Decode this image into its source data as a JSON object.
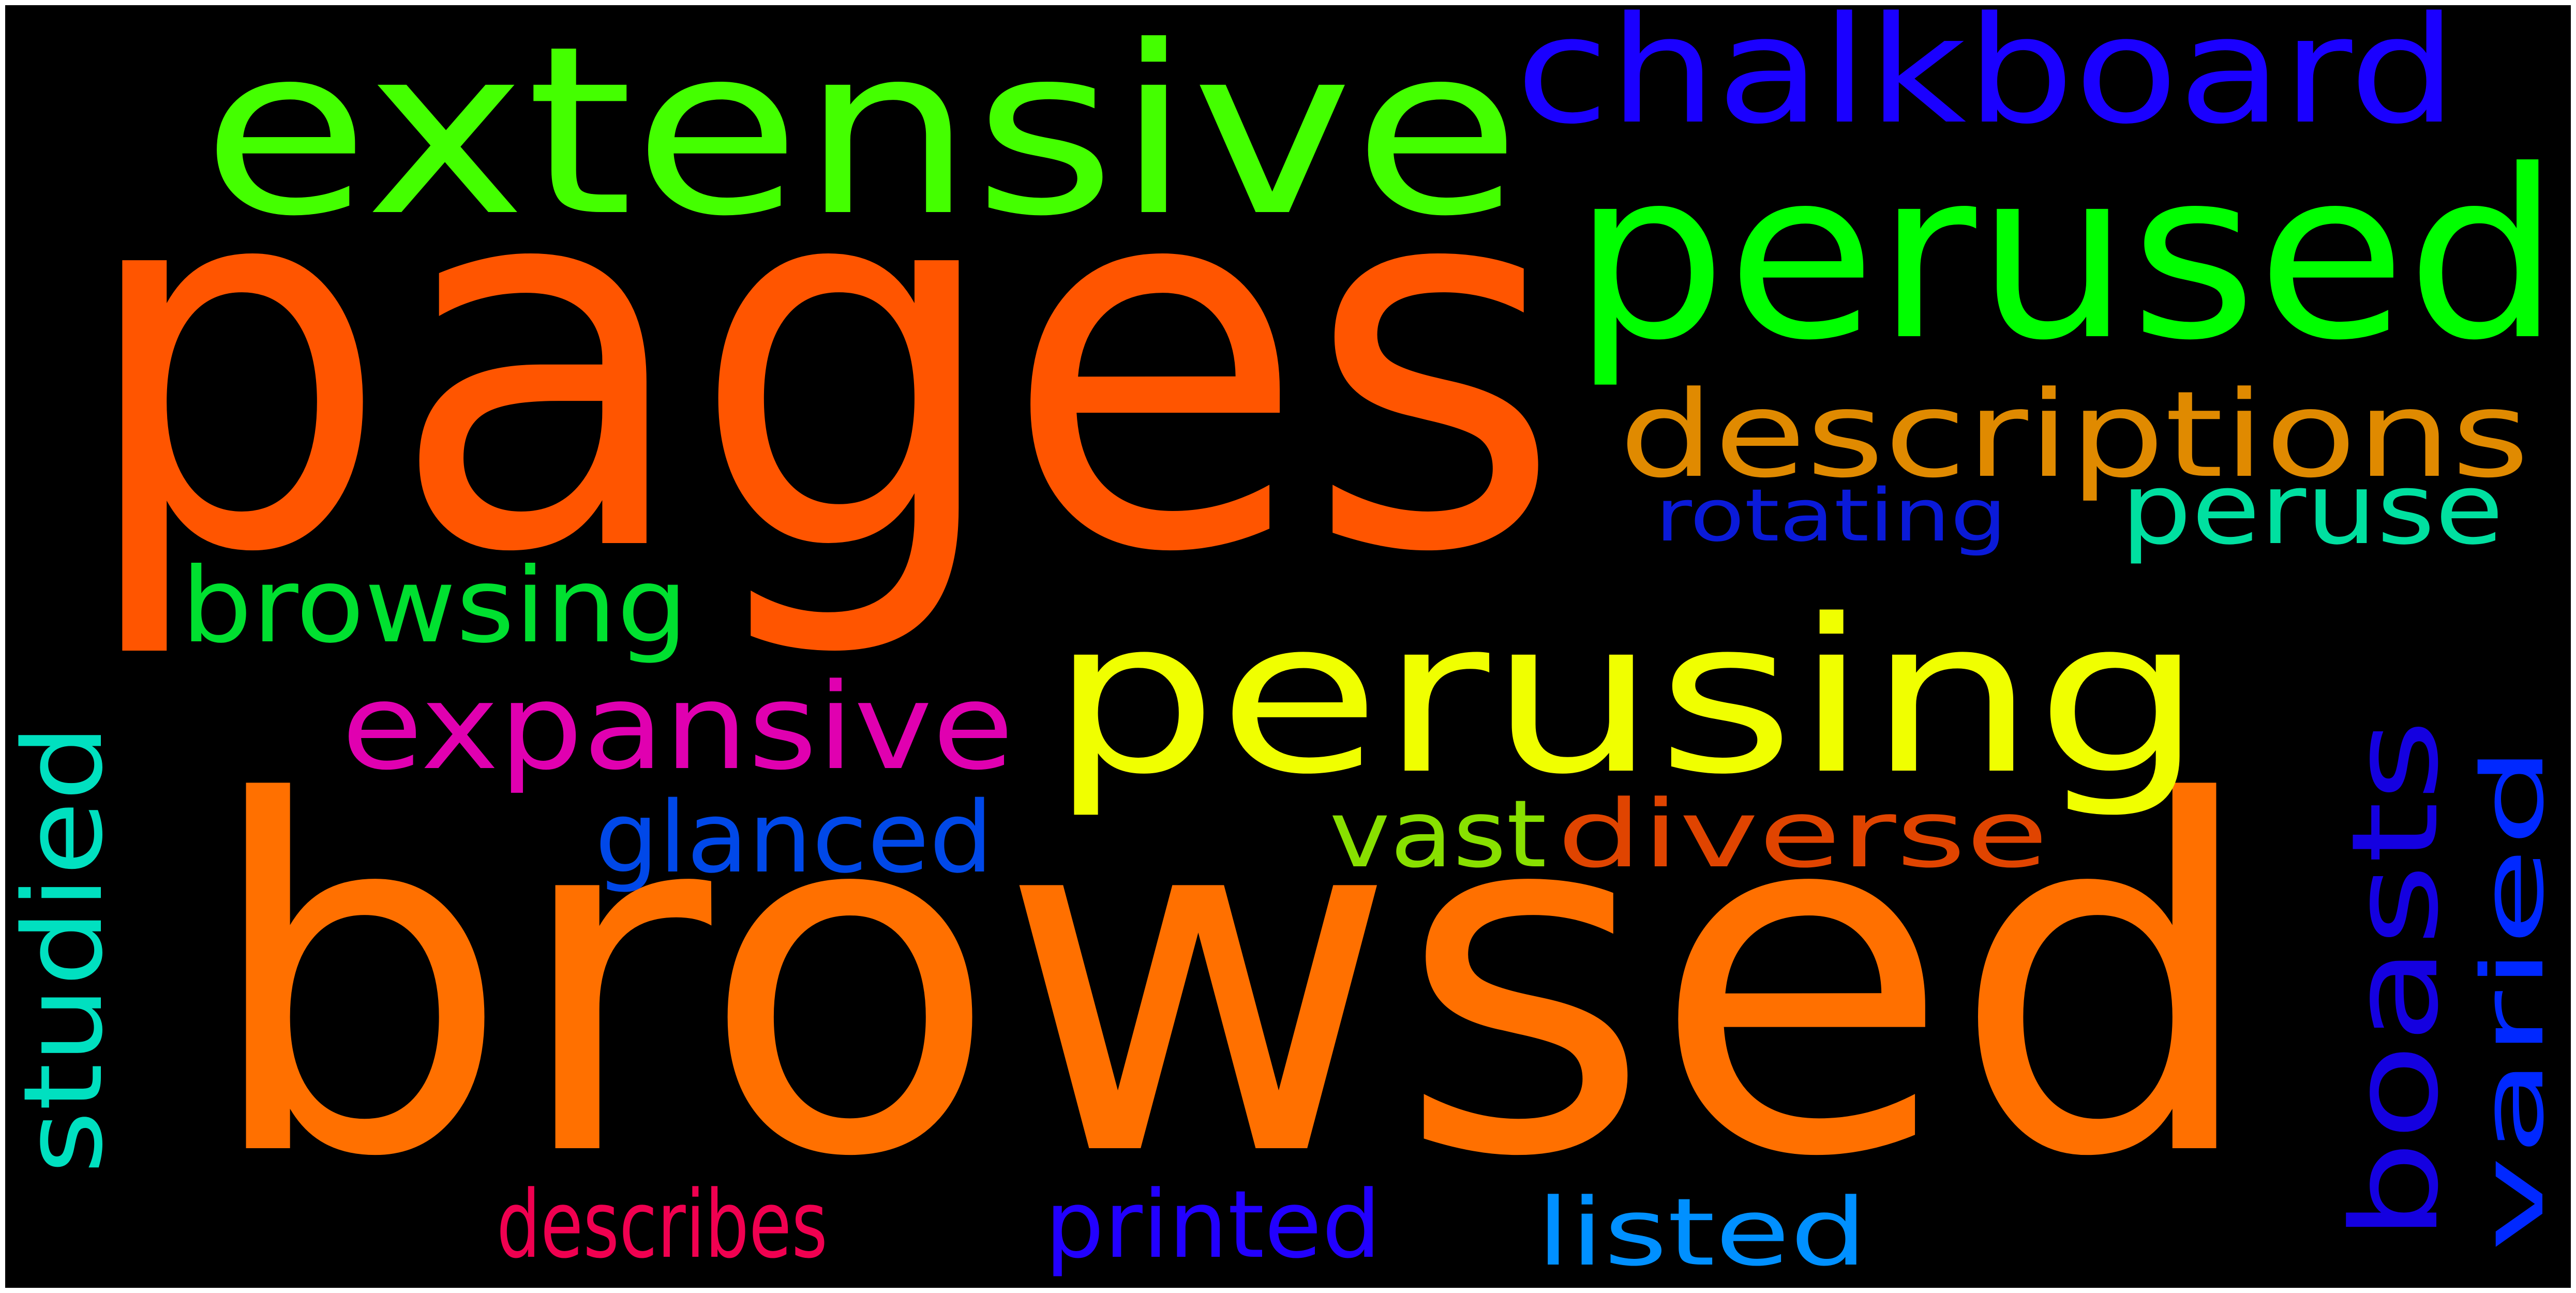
{
  "words": [
    {
      "text": "pages",
      "color": "#ff5500"
    },
    {
      "text": "browsed",
      "color": "#ff7000"
    },
    {
      "text": "extensive",
      "color": "#44ff00"
    },
    {
      "text": "perused",
      "color": "#00ff00"
    },
    {
      "text": "chalkboard",
      "color": "#1a00ff"
    },
    {
      "text": "perusing",
      "color": "#f0ff00"
    },
    {
      "text": "descriptions",
      "color": "#e08a00"
    },
    {
      "text": "peruse",
      "color": "#00e0a0"
    },
    {
      "text": "rotating",
      "color": "#0a1ad8"
    },
    {
      "text": "browsing",
      "color": "#00e030"
    },
    {
      "text": "expansive",
      "color": "#e000b0"
    },
    {
      "text": "glanced",
      "color": "#0048e8"
    },
    {
      "text": "vast",
      "color": "#88e000"
    },
    {
      "text": "diverse",
      "color": "#e04400"
    },
    {
      "text": "studied",
      "color": "#00e0c0"
    },
    {
      "text": "describes",
      "color": "#f00050"
    },
    {
      "text": "printed",
      "color": "#2200ff"
    },
    {
      "text": "listed",
      "color": "#0090ff"
    },
    {
      "text": "boasts",
      "color": "#1400e0"
    },
    {
      "text": "varied",
      "color": "#0028ff"
    }
  ]
}
